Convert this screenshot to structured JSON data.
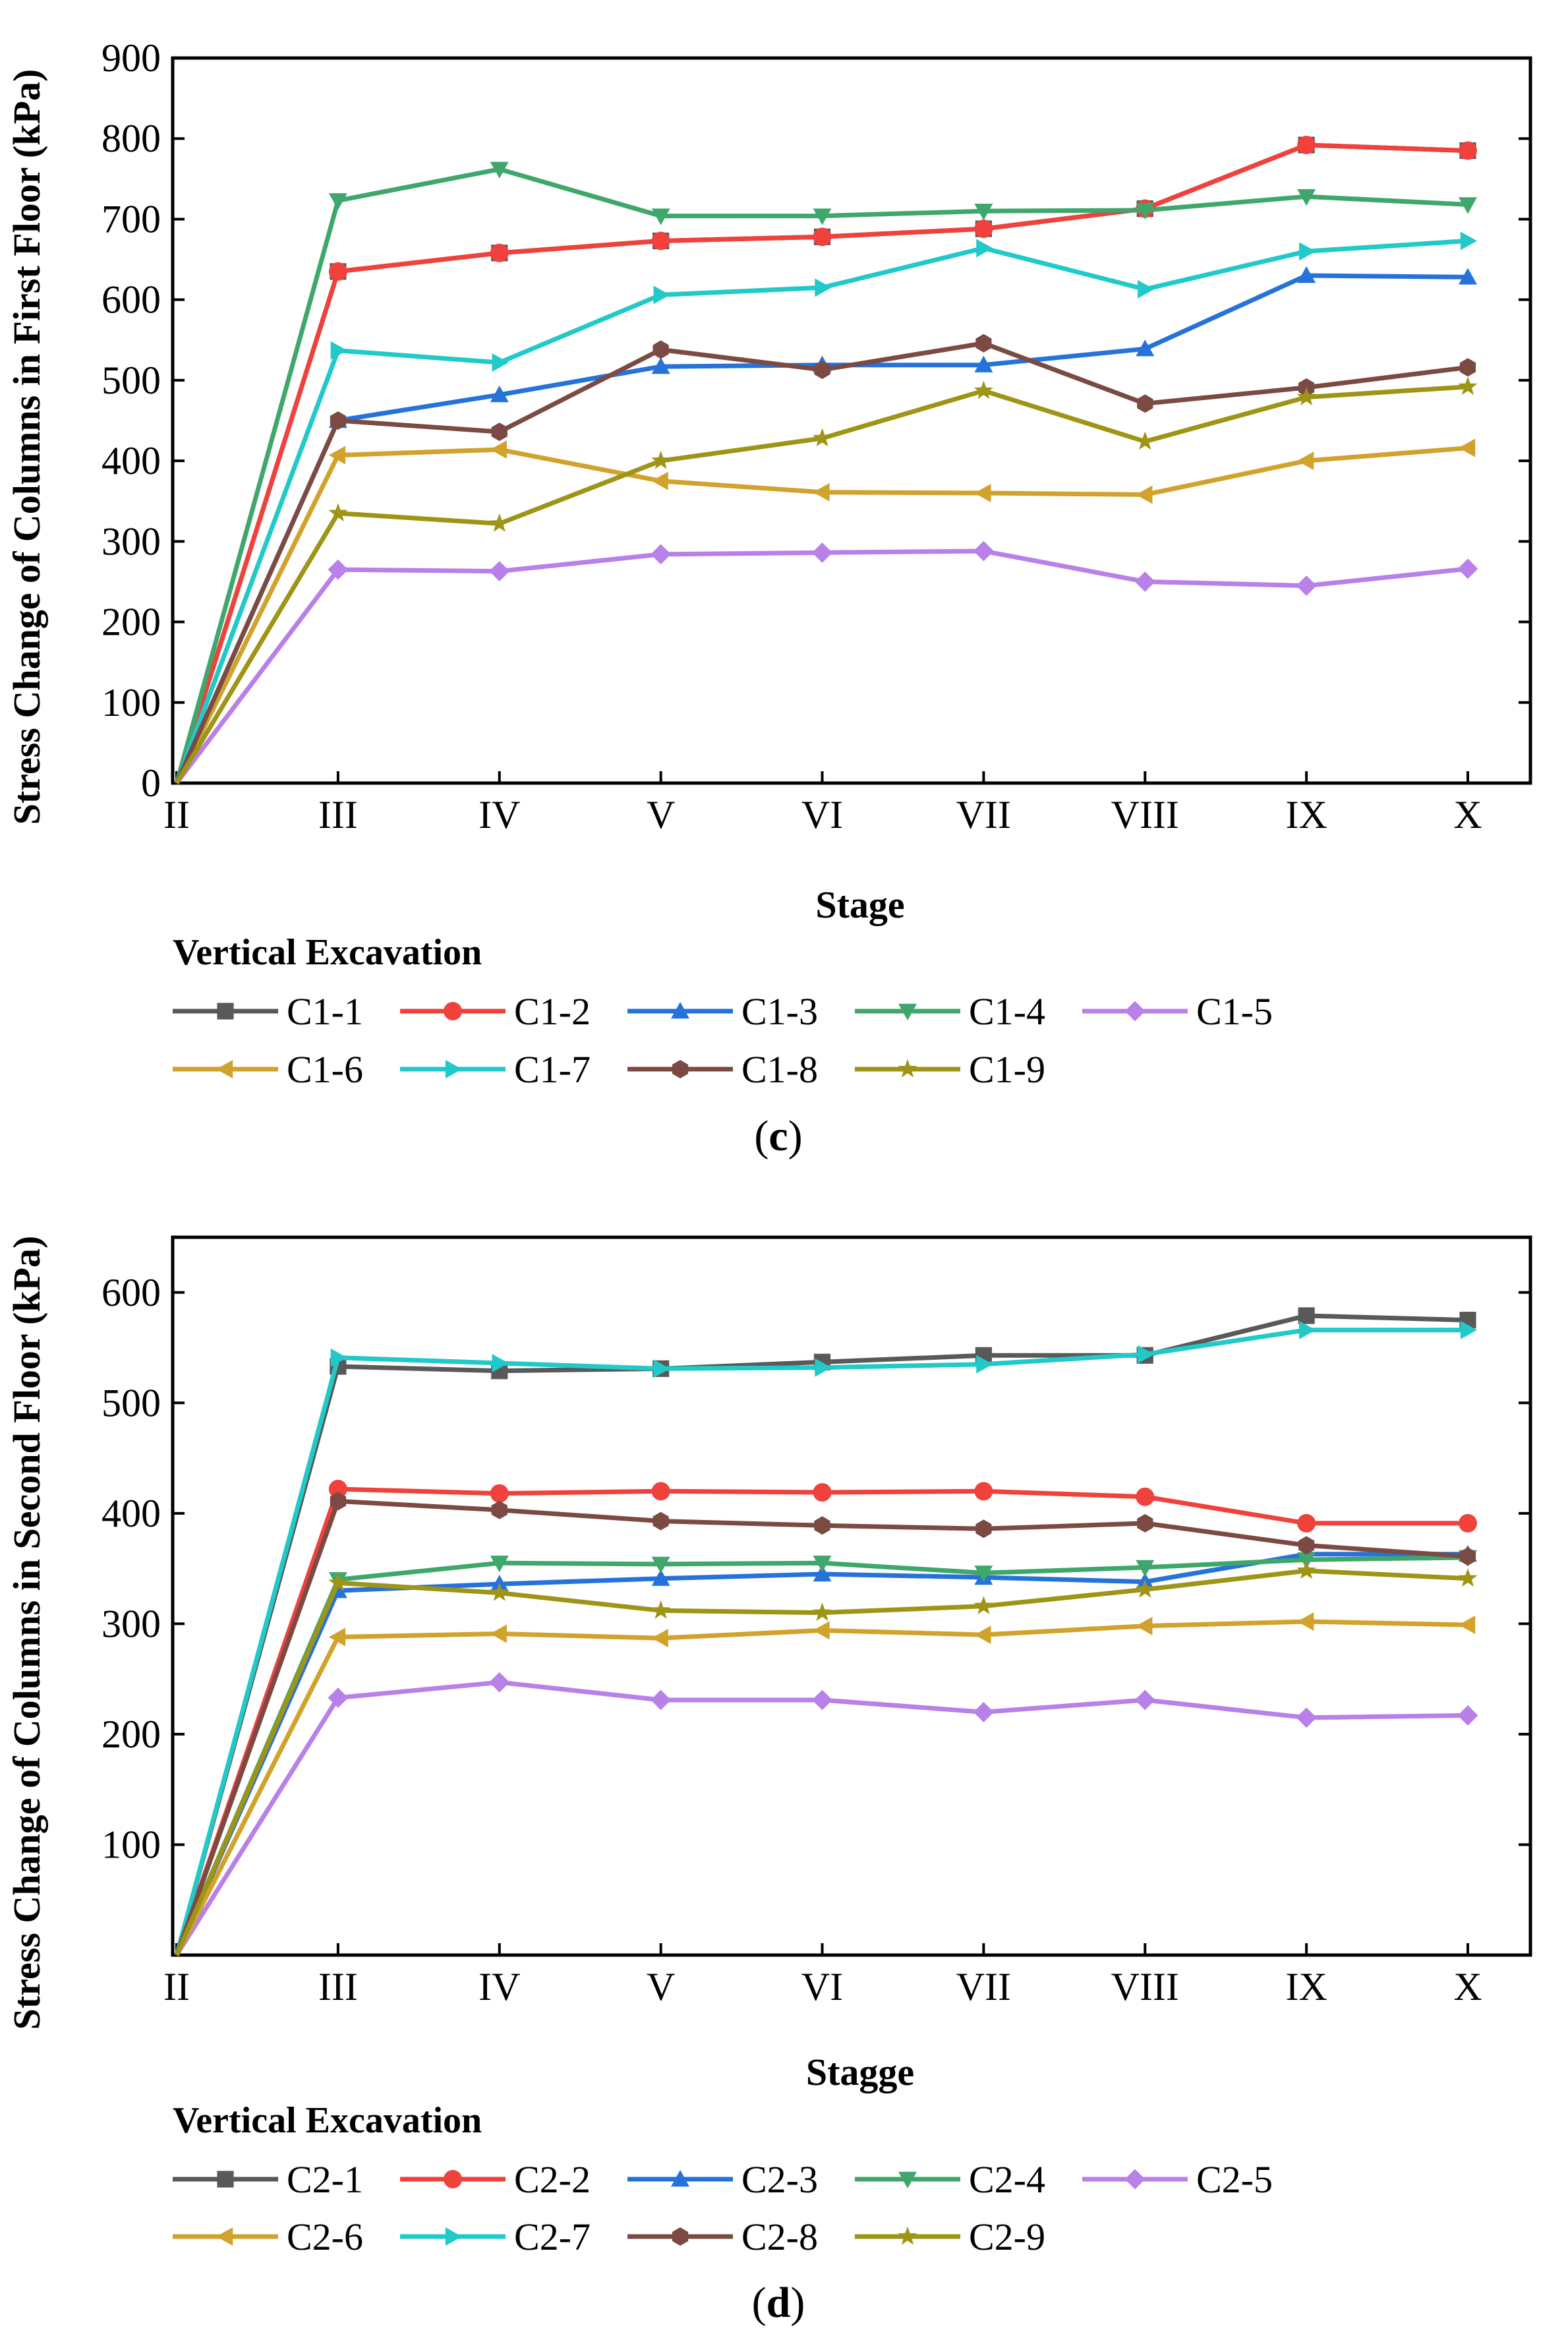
{
  "chart_data": [
    {
      "type": "line",
      "panel_label_open": "(",
      "panel_label_letter": "c",
      "panel_label_close": ")",
      "title": "",
      "xlabel": "Stage",
      "ylabel": "Stress Change of Columns in First Floor (kPa)",
      "categories": [
        "II",
        "III",
        "IV",
        "V",
        "VI",
        "VII",
        "VIII",
        "IX",
        "X"
      ],
      "ylim": [
        0,
        900
      ],
      "yticks": [
        0,
        100,
        200,
        300,
        400,
        500,
        600,
        700,
        800,
        900
      ],
      "grid": false,
      "legend_title": "Vertical Excavation",
      "legend_rows": [
        [
          0,
          1,
          2,
          3,
          4
        ],
        [
          5,
          6,
          7,
          8
        ]
      ],
      "series": [
        {
          "name": "C1-1",
          "color": "#595959",
          "marker": "square",
          "values": [
            0,
            635,
            658,
            673,
            678,
            688,
            713,
            792,
            785
          ]
        },
        {
          "name": "C1-2",
          "color": "#f0413c",
          "marker": "circle",
          "values": [
            0,
            635,
            658,
            673,
            678,
            688,
            713,
            792,
            785
          ]
        },
        {
          "name": "C1-3",
          "color": "#2672db",
          "marker": "tri-up",
          "values": [
            0,
            450,
            482,
            517,
            519,
            519,
            539,
            630,
            628
          ]
        },
        {
          "name": "C1-4",
          "color": "#3fa76b",
          "marker": "tri-down",
          "values": [
            0,
            723,
            762,
            704,
            704,
            710,
            711,
            728,
            718
          ]
        },
        {
          "name": "C1-5",
          "color": "#b880e8",
          "marker": "diamond",
          "values": [
            0,
            265,
            263,
            284,
            286,
            288,
            250,
            245,
            266
          ]
        },
        {
          "name": "C1-6",
          "color": "#d1a22c",
          "marker": "tri-left",
          "values": [
            0,
            407,
            414,
            375,
            361,
            360,
            358,
            400,
            416
          ]
        },
        {
          "name": "C1-7",
          "color": "#21c9c9",
          "marker": "tri-right",
          "values": [
            0,
            537,
            522,
            606,
            615,
            664,
            613,
            660,
            673
          ]
        },
        {
          "name": "C1-8",
          "color": "#7a4a43",
          "marker": "hexagon",
          "values": [
            0,
            450,
            436,
            538,
            513,
            546,
            471,
            491,
            516
          ]
        },
        {
          "name": "C1-9",
          "color": "#9e9415",
          "marker": "star",
          "values": [
            0,
            335,
            322,
            400,
            428,
            487,
            424,
            479,
            492
          ]
        }
      ]
    },
    {
      "type": "line",
      "panel_label_open": "(",
      "panel_label_letter": "d",
      "panel_label_close": ")",
      "title": "",
      "xlabel": "Stagge",
      "ylabel": "Stress Change of Columns in Second Floor (kPa)",
      "categories": [
        "II",
        "III",
        "IV",
        "V",
        "VI",
        "VII",
        "VIII",
        "IX",
        "X"
      ],
      "ylim": [
        0,
        650
      ],
      "yticks": [
        100,
        200,
        300,
        400,
        500,
        600
      ],
      "grid": false,
      "legend_title": "Vertical Excavation",
      "legend_rows": [
        [
          0,
          1,
          2,
          3,
          4
        ],
        [
          5,
          6,
          7,
          8
        ]
      ],
      "series": [
        {
          "name": "C2-1",
          "color": "#595959",
          "marker": "square",
          "values": [
            0,
            533,
            529,
            531,
            537,
            543,
            543,
            579,
            575
          ]
        },
        {
          "name": "C2-2",
          "color": "#f0413c",
          "marker": "circle",
          "values": [
            0,
            422,
            418,
            420,
            419,
            420,
            415,
            391,
            391
          ]
        },
        {
          "name": "C2-3",
          "color": "#2672db",
          "marker": "tri-up",
          "values": [
            0,
            330,
            336,
            341,
            345,
            342,
            338,
            363,
            363
          ]
        },
        {
          "name": "C2-4",
          "color": "#3fa76b",
          "marker": "tri-down",
          "values": [
            0,
            340,
            355,
            354,
            355,
            346,
            351,
            358,
            360
          ]
        },
        {
          "name": "C2-5",
          "color": "#b880e8",
          "marker": "diamond",
          "values": [
            0,
            233,
            247,
            231,
            231,
            220,
            231,
            215,
            217
          ]
        },
        {
          "name": "C2-6",
          "color": "#d1a22c",
          "marker": "tri-left",
          "values": [
            0,
            288,
            291,
            287,
            294,
            290,
            298,
            302,
            299
          ]
        },
        {
          "name": "C2-7",
          "color": "#21c9c9",
          "marker": "tri-right",
          "values": [
            0,
            541,
            536,
            531,
            532,
            535,
            544,
            566,
            566
          ]
        },
        {
          "name": "C2-8",
          "color": "#7a4a43",
          "marker": "hexagon",
          "values": [
            0,
            411,
            403,
            393,
            389,
            386,
            391,
            371,
            361
          ]
        },
        {
          "name": "C2-9",
          "color": "#9e9415",
          "marker": "star",
          "values": [
            0,
            337,
            328,
            312,
            310,
            316,
            331,
            348,
            341
          ]
        }
      ]
    }
  ]
}
